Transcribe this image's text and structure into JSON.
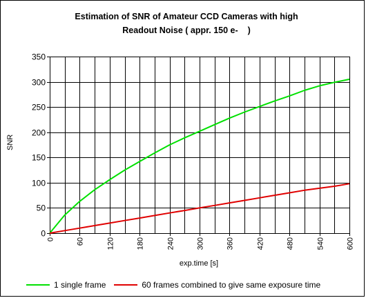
{
  "chart_data": {
    "type": "line",
    "title_lines": [
      "Estimation of SNR of Amateur CCD Cameras with high",
      "Readout Noise ( appr. 150 e-    )"
    ],
    "xlabel": "exp.time [s]",
    "ylabel": "SNR",
    "xlim": [
      0,
      600
    ],
    "ylim": [
      0,
      350
    ],
    "xticks": [
      "0",
      "60",
      "120",
      "180",
      "240",
      "300",
      "360",
      "420",
      "480",
      "540",
      "600"
    ],
    "yticks": [
      "0",
      "50",
      "100",
      "150",
      "200",
      "250",
      "300",
      "350"
    ],
    "x_gridlines": [
      0,
      30,
      60,
      90,
      120,
      150,
      180,
      210,
      240,
      270,
      300,
      330,
      360,
      390,
      420,
      450,
      480,
      510,
      540,
      570,
      600
    ],
    "y_gridlines": [
      0,
      50,
      100,
      150,
      200,
      250,
      300,
      350
    ],
    "grid": true,
    "legend_position": "bottom",
    "series": [
      {
        "name": "1 single frame",
        "color": "#00e000",
        "x": [
          0,
          30,
          60,
          90,
          120,
          150,
          180,
          210,
          240,
          270,
          300,
          330,
          360,
          390,
          420,
          450,
          480,
          510,
          540,
          570,
          600
        ],
        "y": [
          0,
          36,
          63,
          86,
          106,
          125,
          142,
          159,
          175,
          189,
          202,
          215,
          228,
          240,
          251,
          262,
          272,
          283,
          292,
          299,
          305
        ]
      },
      {
        "name": "60 frames combined to give same exposure time",
        "color": "#e00000",
        "x": [
          0,
          30,
          60,
          90,
          120,
          150,
          180,
          210,
          240,
          270,
          300,
          330,
          360,
          390,
          420,
          450,
          480,
          510,
          540,
          570,
          600
        ],
        "y": [
          0,
          5,
          10,
          15,
          20,
          25,
          30,
          35,
          40,
          45,
          50,
          55,
          60,
          65,
          70,
          75,
          80,
          85,
          89,
          93,
          98
        ]
      }
    ]
  }
}
